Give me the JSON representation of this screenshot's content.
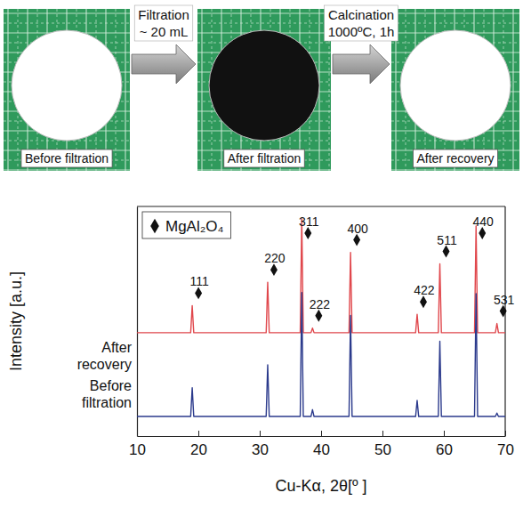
{
  "diagram": {
    "panels": [
      {
        "label": "Before filtration",
        "color": "#ffffff"
      },
      {
        "label": "After filtration",
        "color": "#111111"
      },
      {
        "label": "After recovery",
        "color": "#ffffff"
      }
    ],
    "steps": [
      {
        "lines": [
          "Filtration",
          "~ 20 mL"
        ]
      },
      {
        "lines": [
          "Calcination",
          "1000ºC, 1h"
        ]
      }
    ]
  },
  "chart_data": {
    "type": "line",
    "xlabel": "Cu-Kα, 2θ[º ]",
    "ylabel": "Intensity [a.u.]",
    "x": [
      10,
      18.75,
      19.0,
      19.25,
      31.05,
      31.3,
      31.55,
      36.6,
      36.85,
      37.1,
      38.35,
      38.6,
      38.85,
      44.55,
      44.8,
      45.05,
      55.4,
      55.65,
      55.9,
      59.1,
      59.35,
      59.6,
      65.0,
      65.25,
      65.5,
      68.4,
      68.65,
      68.9,
      70
    ],
    "series": [
      {
        "name": "After recovery",
        "color": "#e0474c",
        "values": [
          45,
          45,
          56.8,
          45,
          45,
          67,
          45,
          45,
          94.6,
          45,
          45,
          47,
          45,
          45,
          80,
          45,
          45,
          53,
          45,
          45,
          75,
          45,
          45,
          91.5,
          45,
          45,
          49,
          45,
          45
        ]
      },
      {
        "name": "Before filtration",
        "color": "#2b3a8c",
        "values": [
          8.5,
          8.5,
          21,
          8.5,
          8.5,
          31,
          8.5,
          8.5,
          62.5,
          8.5,
          8.5,
          11.5,
          8.5,
          8.5,
          52.5,
          8.5,
          8.5,
          15.5,
          8.5,
          8.5,
          41.3,
          8.5,
          8.5,
          62,
          8.5,
          8.5,
          10,
          8.5,
          8.5
        ]
      }
    ],
    "xlim": [
      10,
      70
    ],
    "xticks": [
      10,
      20,
      30,
      40,
      50,
      60,
      70
    ],
    "ylim": [
      0,
      100
    ],
    "tick_labels": "x",
    "grid": false,
    "legend": "upper left",
    "annotations": {
      "name": "MgAl₂O₄",
      "marker": "diamond",
      "items": [
        {
          "text": "111",
          "x": 19.0
        },
        {
          "text": "220",
          "x": 31.3
        },
        {
          "text": "311",
          "x": 36.85
        },
        {
          "text": "222",
          "x": 38.6
        },
        {
          "text": "400",
          "x": 44.8
        },
        {
          "text": "422",
          "x": 55.65
        },
        {
          "text": "511",
          "x": 59.35
        },
        {
          "text": "440",
          "x": 65.25
        },
        {
          "text": "531",
          "x": 68.65
        }
      ]
    }
  }
}
